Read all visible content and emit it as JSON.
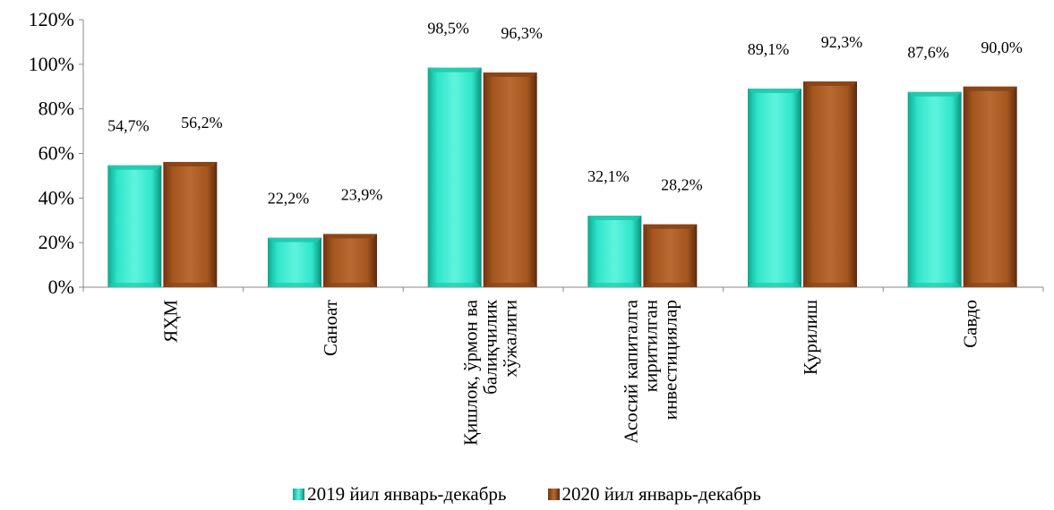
{
  "chart_data": {
    "type": "bar",
    "categories": [
      [
        "ЯҲМ"
      ],
      [
        "Саноат"
      ],
      [
        "Қишлок, ўрмон ва",
        "балиқчилик",
        "хўжалиги"
      ],
      [
        "Асосий капиталга",
        "киритилган",
        "инвестициялар"
      ],
      [
        "Қурилиш"
      ],
      [
        "Савдо"
      ]
    ],
    "series": [
      {
        "name": "2019 йил январь-декабрь",
        "values": [
          54.7,
          22.2,
          98.5,
          32.1,
          89.1,
          87.6
        ],
        "labels": [
          "54,7%",
          "22,2%",
          "98,5%",
          "32,1%",
          "89,1%",
          "87,6%"
        ],
        "color": "#22e0c4"
      },
      {
        "name": "2020 йил январь-декабрь",
        "values": [
          56.2,
          23.9,
          96.3,
          28.2,
          92.3,
          90.0
        ],
        "labels": [
          "56,2%",
          "23,9%",
          "96,3%",
          "28,2%",
          "92,3%",
          "90,0%"
        ],
        "color": "#a0521c"
      }
    ],
    "ylim": [
      0,
      120
    ],
    "yticks": [
      "0%",
      "20%",
      "40%",
      "60%",
      "80%",
      "100%",
      "120%"
    ],
    "grid": false,
    "legend": "bottom"
  }
}
